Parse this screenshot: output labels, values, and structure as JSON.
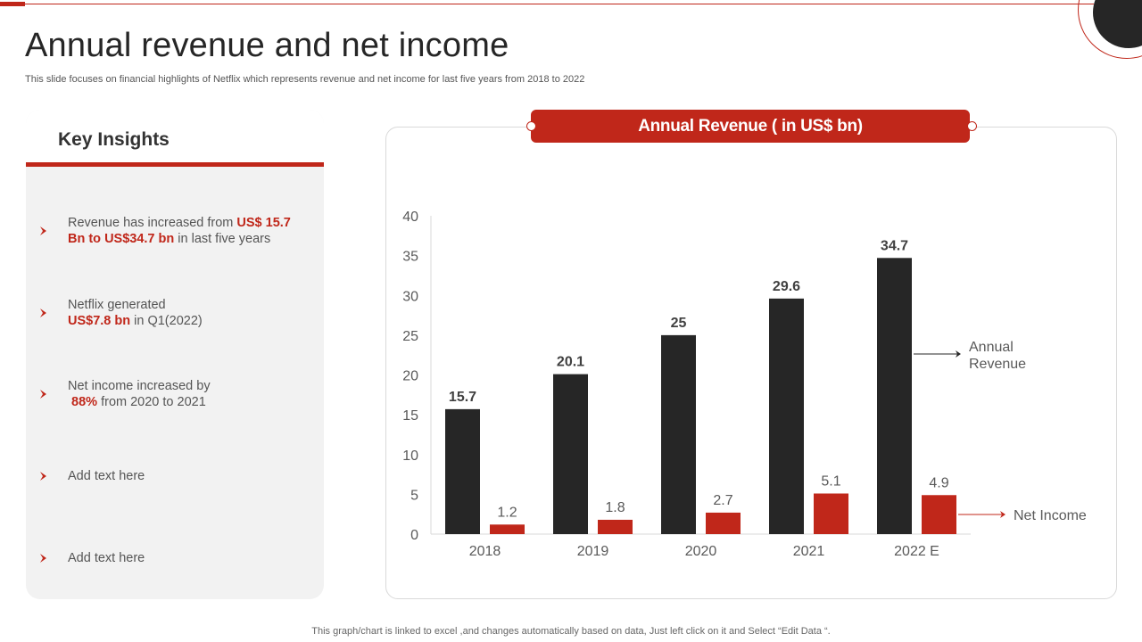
{
  "title": "Annual revenue and net income",
  "subtitle": "This slide focuses on financial highlights of Netflix which represents revenue and net income for last five years from 2018 to 2022",
  "insights": {
    "heading": "Key Insights",
    "items": [
      {
        "pre": "Revenue has increased from ",
        "hl": "US$ 15.7 Bn to US$34.7 bn",
        "post": " in last five years"
      },
      {
        "pre": "Netflix generated ",
        "hl": "US$7.8 bn",
        "post": " in Q1(2022)"
      },
      {
        "pre": "Net income increased by ",
        "hl": "88%",
        "post": " from 2020 to 2021"
      },
      {
        "pre": "Add text here",
        "hl": "",
        "post": ""
      },
      {
        "pre": "Add text here",
        "hl": "",
        "post": ""
      }
    ]
  },
  "footer": "This graph/chart is linked to excel ,and changes automatically based on data, Just left click on it and Select “Edit Data “.",
  "colors": {
    "accent": "#c0271a",
    "dark": "#262626",
    "panel": "#f2f2f2"
  },
  "chart_data": {
    "type": "bar",
    "title": "Annual Revenue ( in US$ bn)",
    "categories": [
      "2018",
      "2019",
      "2020",
      "2021",
      "2022 E"
    ],
    "series": [
      {
        "name": "Annual Revenue",
        "color": "#262626",
        "values": [
          15.7,
          20.1,
          25,
          29.6,
          34.7
        ],
        "label_bold": true
      },
      {
        "name": "Net Income",
        "color": "#c0271a",
        "values": [
          1.2,
          1.8,
          2.7,
          5.1,
          4.9
        ],
        "label_bold": false
      }
    ],
    "ylim": [
      0,
      40
    ],
    "yticks": [
      0,
      5,
      10,
      15,
      20,
      25,
      30,
      35,
      40
    ],
    "legend": [
      {
        "series": 0,
        "lines": [
          "Annual",
          "Revenue"
        ]
      },
      {
        "series": 1,
        "lines": [
          "Net Income"
        ]
      }
    ],
    "grid": false
  }
}
